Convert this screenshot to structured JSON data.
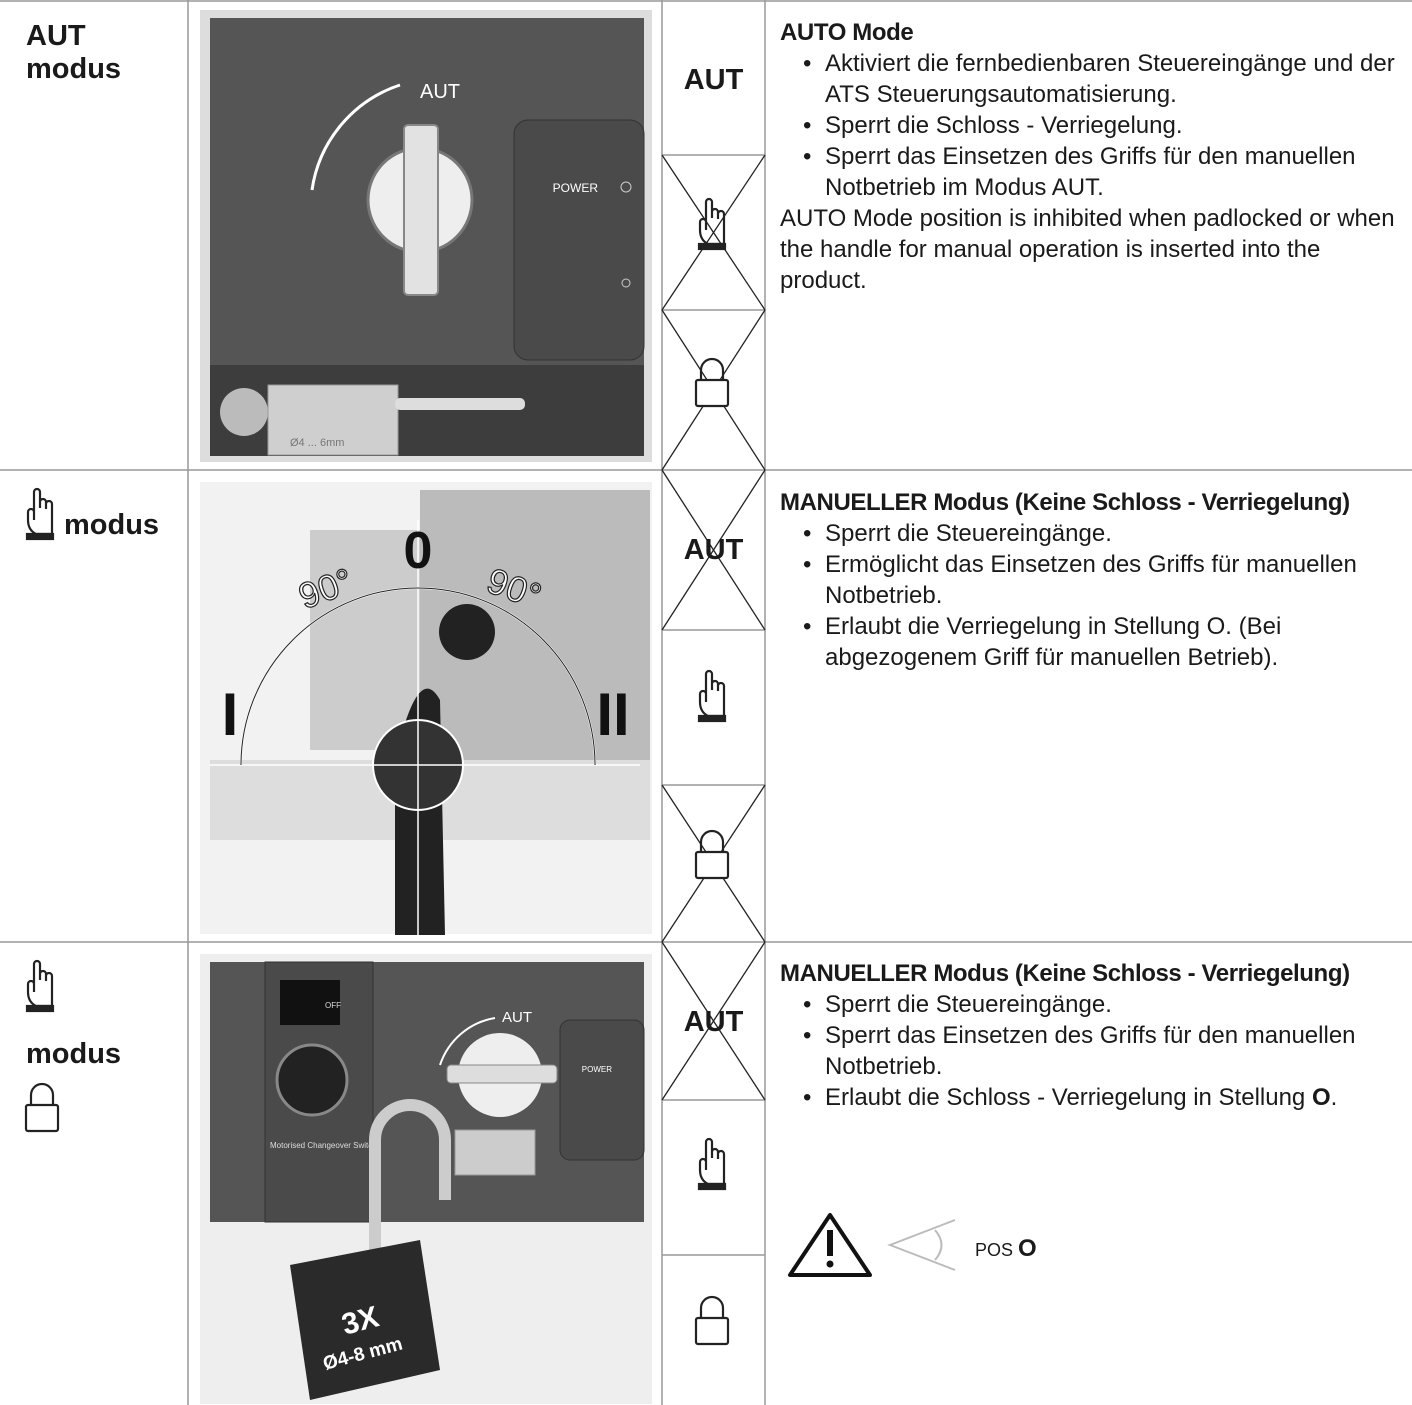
{
  "rows": [
    {
      "mode": [
        "AUT",
        "modus"
      ],
      "image_labels": [
        "AUT",
        "POWER",
        "Ø4 ... 6mm"
      ],
      "status": "AUT",
      "description": {
        "heading": "AUTO Mode",
        "bullets": [
          "Aktiviert die fernbedienbaren Steuereingänge und der ATS Steuerungsautomatisierung.",
          "Sperrt die Schloss - Verriegelung.",
          "Sperrt das Einsetzen des Griffs für den manuellen Notbetrieb im Modus AUT."
        ],
        "note": "AUTO Mode position is inhibited when padlocked or when the handle for manual operation is inserted into the product."
      }
    },
    {
      "mode": [
        "modus"
      ],
      "image_labels": [
        "0",
        "90°",
        "90°",
        "I",
        "II"
      ],
      "status": "AUT",
      "description": {
        "heading": "MANUELLER Modus (Keine Schloss - Verriegelung)",
        "bullets": [
          "Sperrt die Steuereingänge.",
          "Ermöglicht das Einsetzen des Griffs für manuellen Notbetrieb.",
          "Erlaubt die Verriegelung in Stellung O. (Bei abgezogenem Griff für manuellen Betrieb)."
        ]
      }
    },
    {
      "mode": [
        "modus"
      ],
      "image_labels": [
        "AUT",
        "POWER",
        "OFF",
        "Motorised Changeover Switch",
        "3X",
        "Ø4-8 mm"
      ],
      "status": "AUT",
      "description": {
        "heading": "MANUELLER Modus (Keine Schloss - Verriegelung)",
        "bullets": [
          "Sperrt die Steuereingänge.",
          "Sperrt das Einsetzen des Griffs für den manuellen Notbetrieb.",
          {
            "text": "Erlaubt die Schloss - Verriegelung in Stellung ",
            "bold": "O",
            "end": "."
          }
        ],
        "warning": {
          "text": "POS ",
          "bold": "O"
        }
      }
    }
  ]
}
